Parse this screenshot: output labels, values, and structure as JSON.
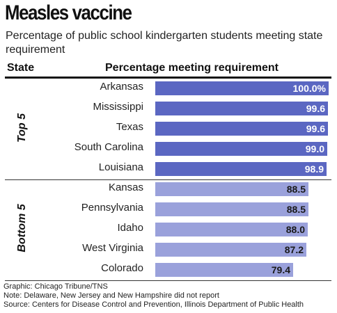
{
  "title": "Measles vaccine",
  "subtitle": "Percentage of public school kindergarten students meeting state requirement",
  "columns": {
    "state": "State",
    "percentage": "Percentage meeting requirement"
  },
  "groups": {
    "top": "Top 5",
    "bottom": "Bottom 5"
  },
  "colors": {
    "top_bar": "#5b67c2",
    "bottom_bar": "#9aa1db"
  },
  "chart_data": {
    "type": "bar",
    "orientation": "horizontal",
    "title": "Measles vaccine",
    "subtitle": "Percentage of public school kindergarten students meeting state requirement",
    "xlabel": "Percentage meeting requirement",
    "ylabel": "State",
    "categories": [
      "Arkansas",
      "Mississippi",
      "Texas",
      "South Carolina",
      "Louisiana",
      "Kansas",
      "Pennsylvania",
      "Idaho",
      "West Virginia",
      "Colorado"
    ],
    "values": [
      100.0,
      99.6,
      99.6,
      99.0,
      98.9,
      88.5,
      88.5,
      88.0,
      87.2,
      79.4
    ],
    "labels": [
      "100.0%",
      "99.6",
      "99.6",
      "99.0",
      "98.9",
      "88.5",
      "88.5",
      "88.0",
      "87.2",
      "79.4"
    ],
    "group": [
      "top",
      "top",
      "top",
      "top",
      "top",
      "bottom",
      "bottom",
      "bottom",
      "bottom",
      "bottom"
    ],
    "xlim": [
      0,
      100
    ],
    "grid": false
  },
  "footer": {
    "graphic": "Graphic: Chicago Tribune/TNS",
    "note": "Note: Delaware, New Jersey and New Hampshire did not report",
    "source": "Source: Centers for Disease Control and Prevention, Illinois Department of Public Health"
  }
}
